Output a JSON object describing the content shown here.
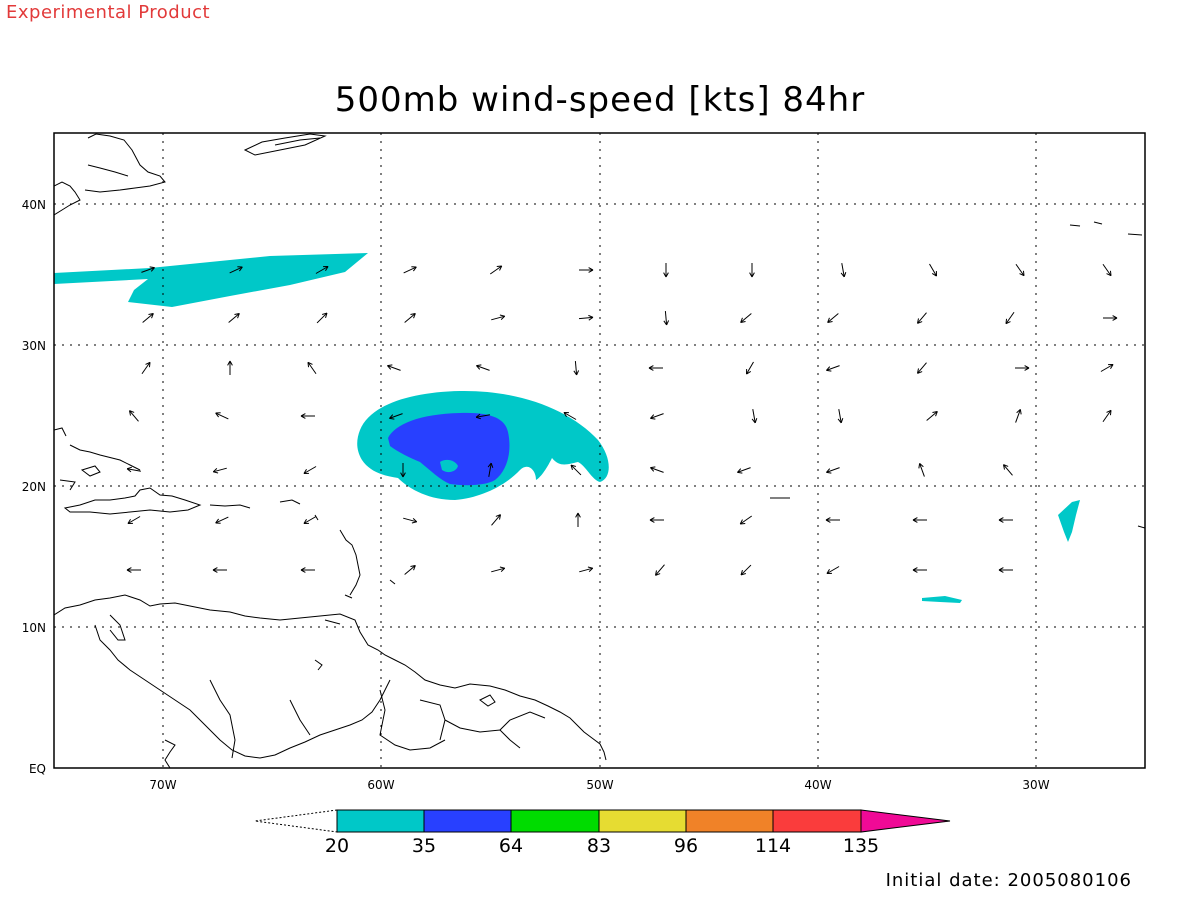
{
  "header": {
    "product_label": "Experimental Product",
    "title": "500mb wind-speed [kts] 84hr",
    "initial_date": "Initial date: 2005080106"
  },
  "axes": {
    "lat_ticks": [
      {
        "label": "40N",
        "value": 40
      },
      {
        "label": "30N",
        "value": 30
      },
      {
        "label": "20N",
        "value": 20
      },
      {
        "label": "10N",
        "value": 10
      },
      {
        "label": "EQ",
        "value": 0
      }
    ],
    "lon_ticks": [
      {
        "label": "70W",
        "value": -70
      },
      {
        "label": "60W",
        "value": -60
      },
      {
        "label": "50W",
        "value": -50
      },
      {
        "label": "40W",
        "value": -40
      },
      {
        "label": "30W",
        "value": -30
      }
    ],
    "lon_range": [
      -75,
      -25
    ],
    "lat_range": [
      0,
      45
    ],
    "grid": "dotted"
  },
  "colorbar": {
    "labels": [
      "20",
      "35",
      "64",
      "83",
      "96",
      "114",
      "135"
    ],
    "colors": [
      "#00c8c8",
      "#2840ff",
      "#00dc00",
      "#e6dc32",
      "#f08228",
      "#fa3c3c",
      "#f00a96"
    ]
  },
  "wind_field": {
    "units": "kts"
  }
}
